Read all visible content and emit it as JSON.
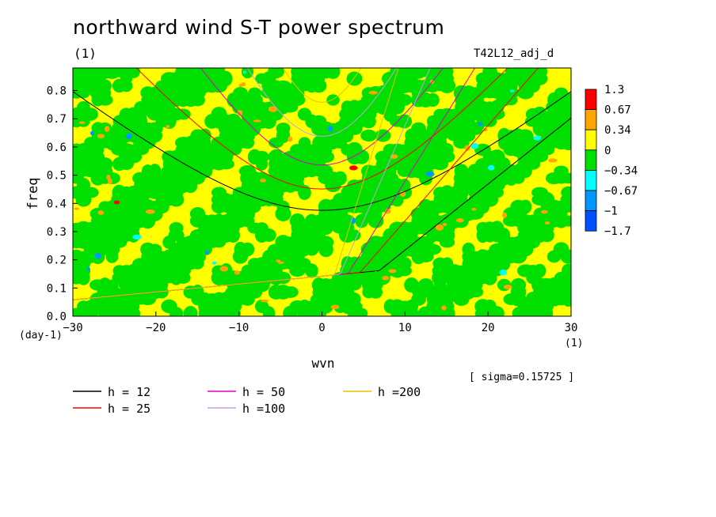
{
  "title": "northward wind S-T power spectrum",
  "subtitle": "(1)",
  "run_label": "T42L12_adj_d",
  "sigma_text": "[ sigma=0.15725 ]",
  "colors": {
    "red": "#ff0000",
    "orange": "#ffa500",
    "yellow": "#ffff00",
    "green": "#00e000",
    "cyan": "#00ffff",
    "lightblue": "#0096ff",
    "blue": "#0050ff"
  },
  "chart_data": {
    "type": "heatmap",
    "title": "northward wind S-T power spectrum",
    "subtitle": "(1)",
    "xlabel": "wvn",
    "x_unit": "(1)",
    "ylabel": "freq",
    "y_unit": "(day-1)",
    "xlim": [
      -30,
      30
    ],
    "ylim": [
      0,
      0.88
    ],
    "x_ticks": [
      -30,
      -20,
      -10,
      0,
      10,
      20,
      30
    ],
    "y_ticks": [
      0.0,
      0.1,
      0.2,
      0.3,
      0.4,
      0.5,
      0.6,
      0.7,
      0.8
    ],
    "colorbar": {
      "levels": [
        "1.3",
        "0.67",
        "0.34",
        "0",
        "-0.34",
        "-0.67",
        "-1",
        "-1.7"
      ],
      "colors": [
        "#ff0000",
        "#ffa500",
        "#ffff00",
        "#00e000",
        "#00ffff",
        "#0096ff",
        "#0050ff"
      ]
    },
    "dispersion_curves": [
      {
        "name": "h = 12",
        "color": "#000000"
      },
      {
        "name": "h = 25",
        "color": "#ff0000"
      },
      {
        "name": "h = 50",
        "color": "#e000c0"
      },
      {
        "name": "h =100",
        "color": "#c8a0e0"
      },
      {
        "name": "h =200",
        "color": "#e8c000"
      }
    ],
    "sigma": 0.15725
  }
}
